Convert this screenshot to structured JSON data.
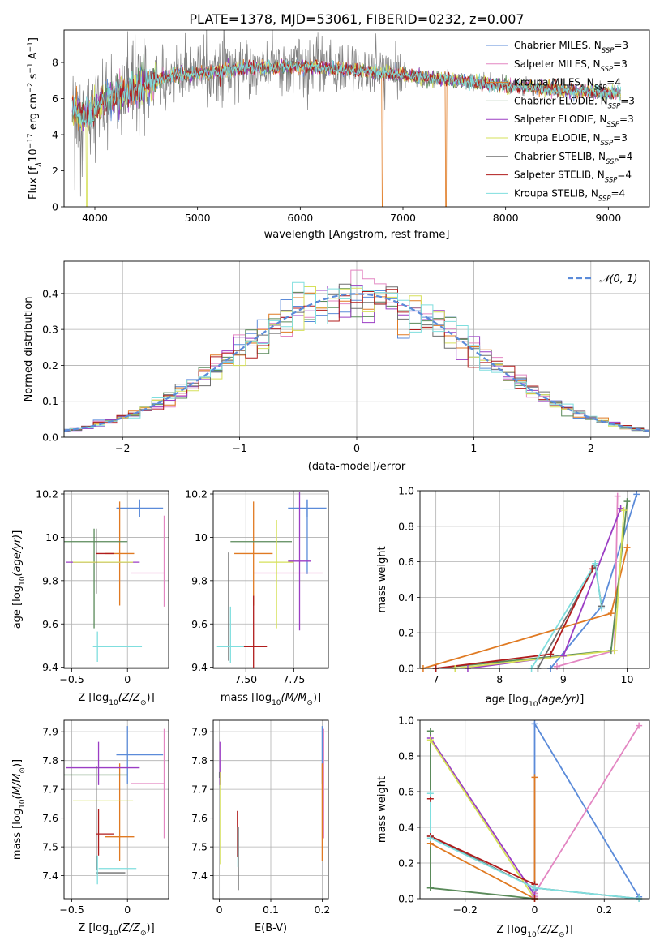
{
  "figure_title": "PLATE=1378, MJD=53061, FIBERID=0232, z=0.007",
  "colors": {
    "Chabrier MILES": "#5b8bd9",
    "Salpeter MILES": "#e386c2",
    "Kroupa MILES": "#e07a22",
    "Chabrier ELODIE": "#5a8a5a",
    "Salpeter ELODIE": "#9b3dc4",
    "Kroupa ELODIE": "#d6e05a",
    "Chabrier STELIB": "#6e6e6e",
    "Salpeter STELIB": "#b01c1c",
    "Kroupa STELIB": "#7fdede",
    "data": "#808080",
    "gaussian": "#5b8bd9",
    "grid": "#b0b0b0"
  },
  "chart_data": [
    {
      "id": "spectrum",
      "type": "line",
      "title": "PLATE=1378, MJD=53061, FIBERID=0232, z=0.007",
      "xlabel": "wavelength [Angstrom, rest frame]",
      "ylabel_main": "Flux [f",
      "ylabel_sub": "λ",
      "ylabel_rest": "10",
      "ylabel_exp1": "−17",
      "ylabel_mid": " erg cm",
      "ylabel_exp2": "−2",
      "ylabel_mid2": " s",
      "ylabel_exp3": "−1",
      "ylabel_mid3": " A",
      "ylabel_exp4": "−1",
      "ylabel_end": "]",
      "xlim": [
        3700,
        9400
      ],
      "ylim": [
        0,
        9.8
      ],
      "xticks": [
        4000,
        5000,
        6000,
        7000,
        8000,
        9000
      ],
      "yticks": [
        0,
        2,
        4,
        6,
        8
      ],
      "grid": false,
      "legend_position": "upper-right",
      "legend": [
        {
          "name": "Chabrier MILES",
          "n": "3"
        },
        {
          "name": "Salpeter MILES",
          "n": "3"
        },
        {
          "name": "Kroupa MILES",
          "n": "4"
        },
        {
          "name": "Chabrier ELODIE",
          "n": "3"
        },
        {
          "name": "Salpeter ELODIE",
          "n": "3"
        },
        {
          "name": "Kroupa ELODIE",
          "n": "3"
        },
        {
          "name": "Chabrier STELIB",
          "n": "4"
        },
        {
          "name": "Salpeter STELIB",
          "n": "4"
        },
        {
          "name": "Kroupa STELIB",
          "n": "4"
        }
      ],
      "legend_sub": "SSP",
      "legend_eq": "=",
      "spectrum_range": [
        3780,
        9120
      ],
      "continuum_knots": [
        [
          3780,
          5.5
        ],
        [
          3900,
          4.9
        ],
        [
          4000,
          5.5
        ],
        [
          4100,
          6.0
        ],
        [
          4300,
          6.3
        ],
        [
          4500,
          6.8
        ],
        [
          4700,
          7.2
        ],
        [
          5000,
          7.4
        ],
        [
          5500,
          7.7
        ],
        [
          6000,
          7.8
        ],
        [
          6500,
          7.6
        ],
        [
          7000,
          7.3
        ],
        [
          7500,
          7.0
        ],
        [
          8000,
          6.7
        ],
        [
          8500,
          6.5
        ],
        [
          9000,
          6.3
        ],
        [
          9120,
          6.3
        ]
      ],
      "model_drops": [
        {
          "model": "Kroupa ELODIE",
          "x": 3920
        },
        {
          "model": "Kroupa MILES",
          "x": 6800
        },
        {
          "model": "Kroupa MILES",
          "x": 7420
        }
      ]
    },
    {
      "id": "residuals",
      "type": "step-histogram",
      "xlabel": "(data-model)/error",
      "ylabel": "Normed distribution",
      "xlim": [
        -2.5,
        2.5
      ],
      "ylim": [
        0,
        0.49
      ],
      "xticks": [
        -2,
        -1,
        0,
        1,
        2
      ],
      "yticks": [
        0.0,
        0.1,
        0.2,
        0.3,
        0.4
      ],
      "grid": true,
      "bin_width": 0.1,
      "legend_position": "upper-right",
      "legend_label": "𝒩(0, 1)",
      "gaussian": {
        "mu": 0,
        "sigma": 1
      }
    },
    {
      "id": "age-vs-Z",
      "type": "errorbar",
      "xlabel_text": "Z [log",
      "xlabel_sub": "10",
      "xlabel_ital": "(Z/Z",
      "xlabel_end": ")]",
      "ylabel_text": "age  [log",
      "ylabel_sub": "10",
      "ylabel_ital": "(age/yr)",
      "ylabel_end": "]",
      "xlim": [
        -0.57,
        0.37
      ],
      "ylim": [
        9.395,
        10.215
      ],
      "xticks": [
        -0.5,
        0.0
      ],
      "yticks": [
        9.4,
        9.6,
        9.8,
        10.0,
        10.2
      ],
      "grid": true,
      "points": [
        {
          "model": "Chabrier MILES",
          "x": 0.11,
          "xerr": 0.21,
          "y": 10.135,
          "yerr": 0.04
        },
        {
          "model": "Salpeter MILES",
          "x": 0.18,
          "xerr": 0.15,
          "y": 9.835,
          "yerr": 0.0
        },
        {
          "model": "Salpeter MILES",
          "x": 0.33,
          "xerr": 0.0,
          "y": 9.89,
          "yerr": 0.21
        },
        {
          "model": "Kroupa MILES",
          "x": -0.07,
          "xerr": 0.13,
          "y": 9.925,
          "yerr": 0.24
        },
        {
          "model": "Chabrier ELODIE",
          "x": -0.3,
          "xerr": 0.3,
          "y": 9.98,
          "yerr": 0.0
        },
        {
          "model": "Chabrier ELODIE",
          "x": -0.3,
          "xerr": 0.0,
          "y": 9.81,
          "yerr": 0.23
        },
        {
          "model": "Salpeter ELODIE",
          "x": -0.22,
          "xerr": 0.33,
          "y": 9.885,
          "yerr": 0.0
        },
        {
          "model": "Kroupa ELODIE",
          "x": -0.22,
          "xerr": 0.27,
          "y": 9.885,
          "yerr": 0.0
        },
        {
          "model": "Chabrier STELIB",
          "x": -0.28,
          "xerr": 0.0,
          "y": 9.89,
          "yerr": 0.15
        },
        {
          "model": "Salpeter STELIB",
          "x": -0.2,
          "xerr": 0.08,
          "y": 9.925,
          "yerr": 0.0
        },
        {
          "model": "Kroupa STELIB",
          "x": -0.09,
          "xerr": 0.22,
          "y": 9.495,
          "yerr": 0.0
        },
        {
          "model": "Kroupa STELIB",
          "x": -0.27,
          "xerr": 0.0,
          "y": 9.495,
          "yerr": 0.07
        }
      ]
    },
    {
      "id": "age-vs-mass",
      "type": "errorbar",
      "xlabel_text": "mass [log",
      "xlabel_sub": "10",
      "xlabel_ital": "(M/M",
      "xlabel_end": ")]",
      "xlim": [
        7.33,
        7.93
      ],
      "ylim": [
        9.395,
        10.215
      ],
      "xticks": [
        7.5,
        7.75
      ],
      "xtick_labels": [
        "7.50",
        "7.75"
      ],
      "yticks": [
        9.4,
        9.6,
        9.8,
        10.0,
        10.2
      ],
      "grid": true,
      "points": [
        {
          "model": "Chabrier MILES",
          "x": 7.82,
          "xerr": 0.1,
          "y": 10.135,
          "yerr": 0.04
        },
        {
          "model": "Chabrier MILES",
          "x": 7.82,
          "xerr": 0.0,
          "y": 10.0,
          "yerr": 0.17
        },
        {
          "model": "Salpeter MILES",
          "x": 7.72,
          "xerr": 0.18,
          "y": 9.835,
          "yerr": 0.0
        },
        {
          "model": "Kroupa MILES",
          "x": 7.54,
          "xerr": 0.1,
          "y": 9.925,
          "yerr": 0.24
        },
        {
          "model": "Chabrier ELODIE",
          "x": 7.58,
          "xerr": 0.16,
          "y": 9.98,
          "yerr": 0.0
        },
        {
          "model": "Salpeter ELODIE",
          "x": 7.78,
          "xerr": 0.06,
          "y": 9.89,
          "yerr": 0.32
        },
        {
          "model": "Kroupa ELODIE",
          "x": 7.66,
          "xerr": 0.09,
          "y": 9.885,
          "yerr": 0.0
        },
        {
          "model": "Kroupa ELODIE",
          "x": 7.66,
          "xerr": 0.0,
          "y": 9.83,
          "yerr": 0.25
        },
        {
          "model": "Chabrier STELIB",
          "x": 7.41,
          "xerr": 0.0,
          "y": 9.68,
          "yerr": 0.25
        },
        {
          "model": "Salpeter STELIB",
          "x": 7.54,
          "xerr": 0.07,
          "y": 9.495,
          "yerr": 0.0
        },
        {
          "model": "Salpeter STELIB",
          "x": 7.54,
          "xerr": 0.0,
          "y": 9.56,
          "yerr": 0.17
        },
        {
          "model": "Kroupa STELIB",
          "x": 7.42,
          "xerr": 0.07,
          "y": 9.495,
          "yerr": 0.0
        },
        {
          "model": "Kroupa STELIB",
          "x": 7.42,
          "xerr": 0.0,
          "y": 9.55,
          "yerr": 0.13
        }
      ]
    },
    {
      "id": "massweight-vs-age",
      "type": "line",
      "xlabel_text": "age  [log",
      "xlabel_sub": "10",
      "xlabel_ital": "(age/yr)",
      "xlabel_end": "]",
      "ylabel": "mass weight",
      "xlim": [
        6.75,
        10.35
      ],
      "ylim": [
        0.0,
        1.0
      ],
      "xticks": [
        7,
        8,
        9,
        10
      ],
      "yticks": [
        0.0,
        0.2,
        0.4,
        0.6,
        0.8,
        1.0
      ],
      "grid": true,
      "series": [
        {
          "model": "Chabrier MILES",
          "x": [
            8.8,
            9.6,
            10.15
          ],
          "y": [
            0.0,
            0.35,
            0.98
          ]
        },
        {
          "model": "Salpeter MILES",
          "x": [
            8.9,
            9.8,
            9.85
          ],
          "y": [
            0.01,
            0.1,
            0.97
          ]
        },
        {
          "model": "Kroupa MILES",
          "x": [
            6.8,
            9.75,
            10.0
          ],
          "y": [
            0.0,
            0.31,
            0.68
          ]
        },
        {
          "model": "Chabrier ELODIE",
          "x": [
            7.0,
            9.75,
            10.0
          ],
          "y": [
            0.0,
            0.1,
            0.94
          ]
        },
        {
          "model": "Salpeter ELODIE",
          "x": [
            7.5,
            9.0,
            9.9
          ],
          "y": [
            0.0,
            0.07,
            0.9
          ]
        },
        {
          "model": "Kroupa ELODIE",
          "x": [
            7.3,
            9.8,
            9.95
          ],
          "y": [
            0.0,
            0.1,
            0.89
          ]
        },
        {
          "model": "Chabrier STELIB",
          "x": [
            8.6,
            9.5,
            9.6
          ],
          "y": [
            0.0,
            0.58,
            0.35
          ]
        },
        {
          "model": "Salpeter STELIB",
          "x": [
            7.0,
            8.8,
            9.45
          ],
          "y": [
            0.0,
            0.08,
            0.56
          ]
        },
        {
          "model": "Kroupa STELIB",
          "x": [
            8.5,
            9.5,
            9.6
          ],
          "y": [
            0.0,
            0.59,
            0.34
          ]
        }
      ]
    },
    {
      "id": "mass-vs-Z",
      "type": "errorbar",
      "xlabel_text": "Z [log",
      "xlabel_sub": "10",
      "xlabel_ital": "(Z/Z",
      "xlabel_end": ")]",
      "ylabel_text": "mass [log",
      "ylabel_sub": "10",
      "ylabel_ital": "(M/M",
      "ylabel_end": ")]",
      "xlim": [
        -0.57,
        0.37
      ],
      "ylim": [
        7.32,
        7.94
      ],
      "xticks": [
        -0.5,
        0.0
      ],
      "yticks": [
        7.4,
        7.5,
        7.6,
        7.7,
        7.8,
        7.9
      ],
      "grid": true,
      "points": [
        {
          "model": "Chabrier MILES",
          "x": 0.11,
          "xerr": 0.21,
          "y": 7.82,
          "yerr": 0.0
        },
        {
          "model": "Chabrier MILES",
          "x": 0.0,
          "xerr": 0.0,
          "y": 7.82,
          "yerr": 0.1
        },
        {
          "model": "Salpeter MILES",
          "x": 0.18,
          "xerr": 0.15,
          "y": 7.72,
          "yerr": 0.0
        },
        {
          "model": "Salpeter MILES",
          "x": 0.33,
          "xerr": 0.0,
          "y": 7.72,
          "yerr": 0.19
        },
        {
          "model": "Kroupa MILES",
          "x": -0.07,
          "xerr": 0.13,
          "y": 7.535,
          "yerr": 0.0
        },
        {
          "model": "Kroupa MILES",
          "x": -0.07,
          "xerr": 0.0,
          "y": 7.62,
          "yerr": 0.17
        },
        {
          "model": "Chabrier ELODIE",
          "x": -0.3,
          "xerr": 0.3,
          "y": 7.75,
          "yerr": 0.0
        },
        {
          "model": "Salpeter ELODIE",
          "x": -0.22,
          "xerr": 0.33,
          "y": 7.775,
          "yerr": 0.0
        },
        {
          "model": "Salpeter ELODIE",
          "x": -0.26,
          "xerr": 0.0,
          "y": 7.79,
          "yerr": 0.075
        },
        {
          "model": "Kroupa ELODIE",
          "x": -0.22,
          "xerr": 0.27,
          "y": 7.66,
          "yerr": 0.0
        },
        {
          "model": "Chabrier STELIB",
          "x": -0.28,
          "xerr": 0.0,
          "y": 7.6,
          "yerr": 0.18
        },
        {
          "model": "Chabrier STELIB",
          "x": -0.15,
          "xerr": 0.13,
          "y": 7.41,
          "yerr": 0.0
        },
        {
          "model": "Salpeter STELIB",
          "x": -0.2,
          "xerr": 0.08,
          "y": 7.545,
          "yerr": 0.0
        },
        {
          "model": "Salpeter STELIB",
          "x": -0.26,
          "xerr": 0.0,
          "y": 7.55,
          "yerr": 0.08
        },
        {
          "model": "Kroupa STELIB",
          "x": -0.09,
          "xerr": 0.17,
          "y": 7.425,
          "yerr": 0.0
        },
        {
          "model": "Kroupa STELIB",
          "x": -0.27,
          "xerr": 0.0,
          "y": 7.42,
          "yerr": 0.05
        }
      ]
    },
    {
      "id": "mass-vs-ebv",
      "type": "errorbar",
      "xlabel": "E(B-V)",
      "xlim": [
        -0.012,
        0.212
      ],
      "ylim": [
        7.32,
        7.94
      ],
      "xticks": [
        0.0,
        0.1,
        0.2
      ],
      "yticks": [
        7.4,
        7.5,
        7.6,
        7.7,
        7.8,
        7.9
      ],
      "grid": true,
      "points": [
        {
          "model": "Chabrier MILES",
          "x": 0.2,
          "xerr": 0.0,
          "y": 7.82,
          "yerr": 0.1
        },
        {
          "model": "Salpeter MILES",
          "x": 0.203,
          "xerr": 0.0,
          "y": 7.72,
          "yerr": 0.19
        },
        {
          "model": "Kroupa MILES",
          "x": 0.2,
          "xerr": 0.0,
          "y": 7.62,
          "yerr": 0.17
        },
        {
          "model": "Chabrier ELODIE",
          "x": 0.0,
          "xerr": 0.0,
          "y": 7.75,
          "yerr": 0.01
        },
        {
          "model": "Salpeter ELODIE",
          "x": 0.001,
          "xerr": 0.0,
          "y": 7.79,
          "yerr": 0.075
        },
        {
          "model": "Kroupa ELODIE",
          "x": 0.002,
          "xerr": 0.0,
          "y": 7.6,
          "yerr": 0.16
        },
        {
          "model": "Chabrier STELIB",
          "x": 0.037,
          "xerr": 0.0,
          "y": 7.46,
          "yerr": 0.11
        },
        {
          "model": "Salpeter STELIB",
          "x": 0.035,
          "xerr": 0.0,
          "y": 7.545,
          "yerr": 0.08
        },
        {
          "model": "Kroupa STELIB",
          "x": 0.036,
          "xerr": 0.0,
          "y": 7.5,
          "yerr": 0.07
        }
      ]
    },
    {
      "id": "massweight-vs-Z",
      "type": "line",
      "xlabel_text": "Z [log",
      "xlabel_sub": "10",
      "xlabel_ital": "(Z/Z",
      "xlabel_end": ")]",
      "ylabel": "mass weight",
      "xlim": [
        -0.33,
        0.33
      ],
      "ylim": [
        0.0,
        1.0
      ],
      "xticks": [
        -0.2,
        0.0,
        0.2
      ],
      "yticks": [
        0.0,
        0.2,
        0.4,
        0.6,
        0.8,
        1.0
      ],
      "grid": true,
      "series": [
        {
          "model": "Chabrier MILES",
          "x": [
            0.0,
            0.0,
            0.3
          ],
          "y": [
            0.05,
            0.98,
            0.01
          ]
        },
        {
          "model": "Salpeter MILES",
          "x": [
            0.0,
            0.0,
            0.3
          ],
          "y": [
            0.01,
            0.03,
            0.97
          ]
        },
        {
          "model": "Kroupa MILES",
          "x": [
            -0.3,
            0.0,
            0.0
          ],
          "y": [
            0.31,
            0.0,
            0.68
          ]
        },
        {
          "model": "Chabrier ELODIE",
          "x": [
            -0.3,
            -0.3,
            0.0,
            -0.3
          ],
          "y": [
            0.94,
            0.06,
            0.0,
            0.06
          ]
        },
        {
          "model": "Salpeter ELODIE",
          "x": [
            -0.3,
            0.0
          ],
          "y": [
            0.9,
            0.02
          ]
        },
        {
          "model": "Kroupa ELODIE",
          "x": [
            -0.3,
            0.0
          ],
          "y": [
            0.89,
            0.0
          ]
        },
        {
          "model": "Chabrier STELIB",
          "x": [
            -0.3,
            0.0,
            0.3
          ],
          "y": [
            0.35,
            0.06,
            0.0
          ]
        },
        {
          "model": "Salpeter STELIB",
          "x": [
            -0.3,
            -0.3,
            0.0,
            0.0
          ],
          "y": [
            0.56,
            0.35,
            0.08,
            0.0
          ]
        },
        {
          "model": "Kroupa STELIB",
          "x": [
            -0.3,
            -0.3,
            0.0,
            0.3
          ],
          "y": [
            0.59,
            0.34,
            0.06,
            0.0
          ]
        }
      ]
    }
  ]
}
